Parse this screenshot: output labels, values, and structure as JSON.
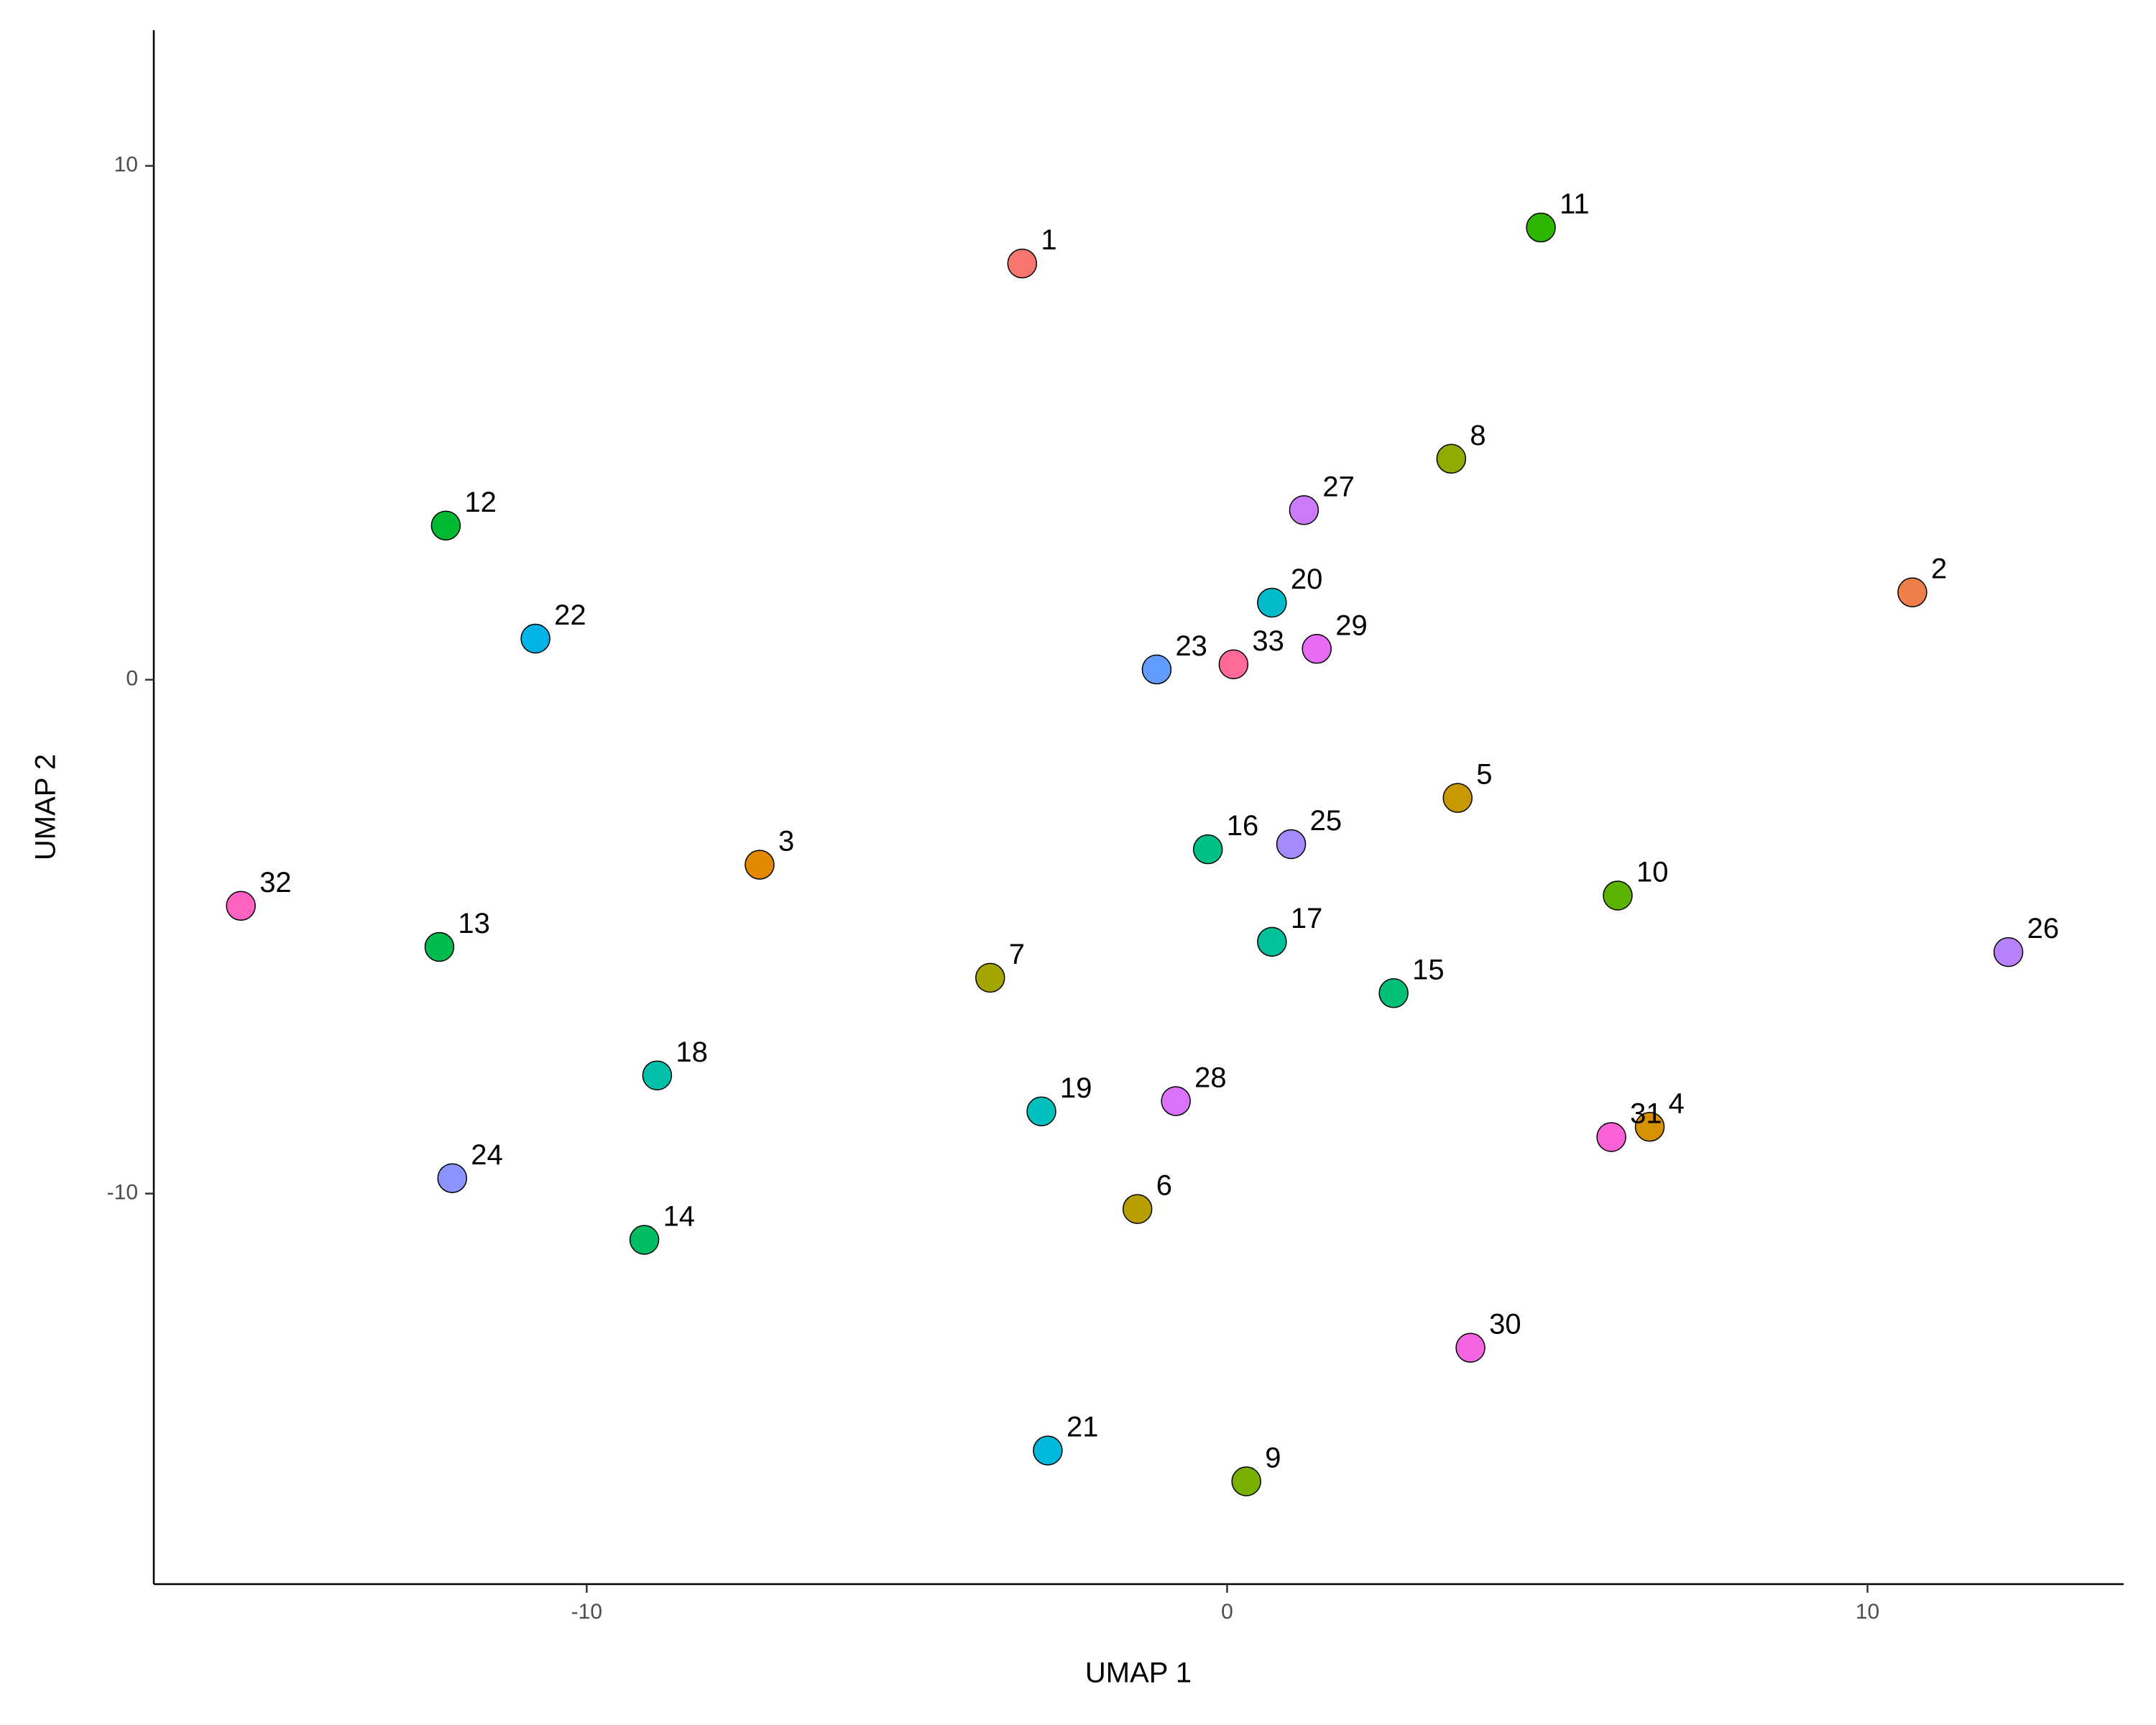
{
  "chart_data": {
    "type": "scatter",
    "xlabel": "UMAP 1",
    "ylabel": "UMAP 2",
    "xlim": [
      -16.76,
      14.0
    ],
    "ylim": [
      -17.6,
      12.64
    ],
    "xticks": [
      -10,
      0,
      10
    ],
    "yticks": [
      -10,
      0,
      10
    ],
    "grid": false,
    "series": [
      {
        "name": "1",
        "color": "#F8766D",
        "x": [
          -3.2
        ],
        "values": [
          8.1
        ]
      },
      {
        "name": "2",
        "color": "#EE7F4A",
        "x": [
          10.7
        ],
        "values": [
          1.7
        ]
      },
      {
        "name": "3",
        "color": "#E38900",
        "x": [
          -7.3
        ],
        "values": [
          -3.6
        ]
      },
      {
        "name": "4",
        "color": "#D69100",
        "x": [
          6.6
        ],
        "values": [
          -8.7
        ]
      },
      {
        "name": "5",
        "color": "#C79800",
        "x": [
          3.6
        ],
        "values": [
          -2.3
        ]
      },
      {
        "name": "6",
        "color": "#B79F00",
        "x": [
          -1.4
        ],
        "values": [
          -10.3
        ]
      },
      {
        "name": "7",
        "color": "#A5A500",
        "x": [
          -3.7
        ],
        "values": [
          -5.8
        ]
      },
      {
        "name": "8",
        "color": "#90AA00",
        "x": [
          3.5
        ],
        "values": [
          4.3
        ]
      },
      {
        "name": "9",
        "color": "#78AF00",
        "x": [
          0.3
        ],
        "values": [
          -15.6
        ]
      },
      {
        "name": "10",
        "color": "#5BB300",
        "x": [
          6.1
        ],
        "values": [
          -4.2
        ]
      },
      {
        "name": "11",
        "color": "#2DB600",
        "x": [
          4.9
        ],
        "values": [
          8.8
        ]
      },
      {
        "name": "12",
        "color": "#00B933",
        "x": [
          -12.2
        ],
        "values": [
          3.0
        ]
      },
      {
        "name": "13",
        "color": "#00BB4E",
        "x": [
          -12.3
        ],
        "values": [
          -5.2
        ]
      },
      {
        "name": "14",
        "color": "#00BD63",
        "x": [
          -9.1
        ],
        "values": [
          -10.9
        ]
      },
      {
        "name": "15",
        "color": "#00BF76",
        "x": [
          2.6
        ],
        "values": [
          -6.1
        ]
      },
      {
        "name": "16",
        "color": "#00C088",
        "x": [
          -0.3
        ],
        "values": [
          -3.3
        ]
      },
      {
        "name": "17",
        "color": "#00C19A",
        "x": [
          0.7
        ],
        "values": [
          -5.1
        ]
      },
      {
        "name": "18",
        "color": "#00C0AB",
        "x": [
          -8.9
        ],
        "values": [
          -7.7
        ]
      },
      {
        "name": "19",
        "color": "#00BFBC",
        "x": [
          -2.9
        ],
        "values": [
          -8.4
        ]
      },
      {
        "name": "20",
        "color": "#00BCCB",
        "x": [
          0.7
        ],
        "values": [
          1.5
        ]
      },
      {
        "name": "21",
        "color": "#00B8DA",
        "x": [
          -2.8
        ],
        "values": [
          -15.0
        ]
      },
      {
        "name": "22",
        "color": "#00B3E7",
        "x": [
          -10.8
        ],
        "values": [
          0.8
        ]
      },
      {
        "name": "23",
        "color": "#619CFF",
        "x": [
          -1.1
        ],
        "values": [
          0.2
        ]
      },
      {
        "name": "24",
        "color": "#8B93FF",
        "x": [
          -12.1
        ],
        "values": [
          -9.7
        ]
      },
      {
        "name": "25",
        "color": "#A58AFF",
        "x": [
          1.0
        ],
        "values": [
          -3.2
        ]
      },
      {
        "name": "26",
        "color": "#BA81FF",
        "x": [
          12.2
        ],
        "values": [
          -5.3
        ]
      },
      {
        "name": "27",
        "color": "#CB7BF7",
        "x": [
          1.2
        ],
        "values": [
          3.3
        ]
      },
      {
        "name": "28",
        "color": "#DB72FB",
        "x": [
          -0.8
        ],
        "values": [
          -8.2
        ]
      },
      {
        "name": "29",
        "color": "#E76BF3",
        "x": [
          1.4
        ],
        "values": [
          0.6
        ]
      },
      {
        "name": "30",
        "color": "#F564E3",
        "x": [
          3.8
        ],
        "values": [
          -13.0
        ]
      },
      {
        "name": "31",
        "color": "#FB61D7",
        "x": [
          6.0
        ],
        "values": [
          -8.9
        ]
      },
      {
        "name": "32",
        "color": "#FF61C3",
        "x": [
          -15.4
        ],
        "values": [
          -4.4
        ]
      },
      {
        "name": "33",
        "color": "#FF6A98",
        "x": [
          0.1
        ],
        "values": [
          0.3
        ]
      }
    ]
  }
}
